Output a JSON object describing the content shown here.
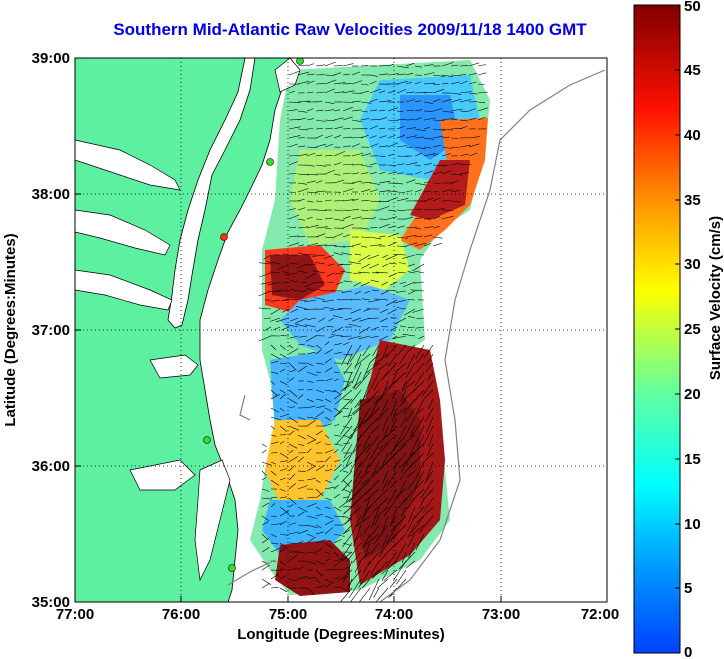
{
  "title": "Southern Mid-Atlantic Raw Velocities 2009/11/18 1400 GMT",
  "x_axis": {
    "label": "Longitude (Degrees:Minutes)",
    "ticks": [
      "77:00",
      "76:00",
      "75:00",
      "74:00",
      "73:00",
      "72:00"
    ]
  },
  "y_axis": {
    "label": "Latitude (Degrees:Minutes)",
    "ticks": [
      "39:00",
      "38:00",
      "37:00",
      "36:00",
      "35:00"
    ]
  },
  "colorbar": {
    "label": "Surface Velocity (cm/s)",
    "min": 0,
    "max": 50,
    "ticks": [
      "50",
      "45",
      "40",
      "35",
      "30",
      "25",
      "20",
      "15",
      "10",
      "5",
      "0"
    ],
    "colors": [
      "#0000ff",
      "#00a0ff",
      "#00ffff",
      "#80ff80",
      "#ffff00",
      "#ff8000",
      "#ff0000",
      "#800000"
    ]
  },
  "map_extent": {
    "lon_min": -77,
    "lon_max": -72,
    "lat_min": 35,
    "lat_max": 39
  },
  "colors": {
    "land": "#5cf0a0",
    "title": "#0000e6",
    "grid": "#000000"
  }
}
